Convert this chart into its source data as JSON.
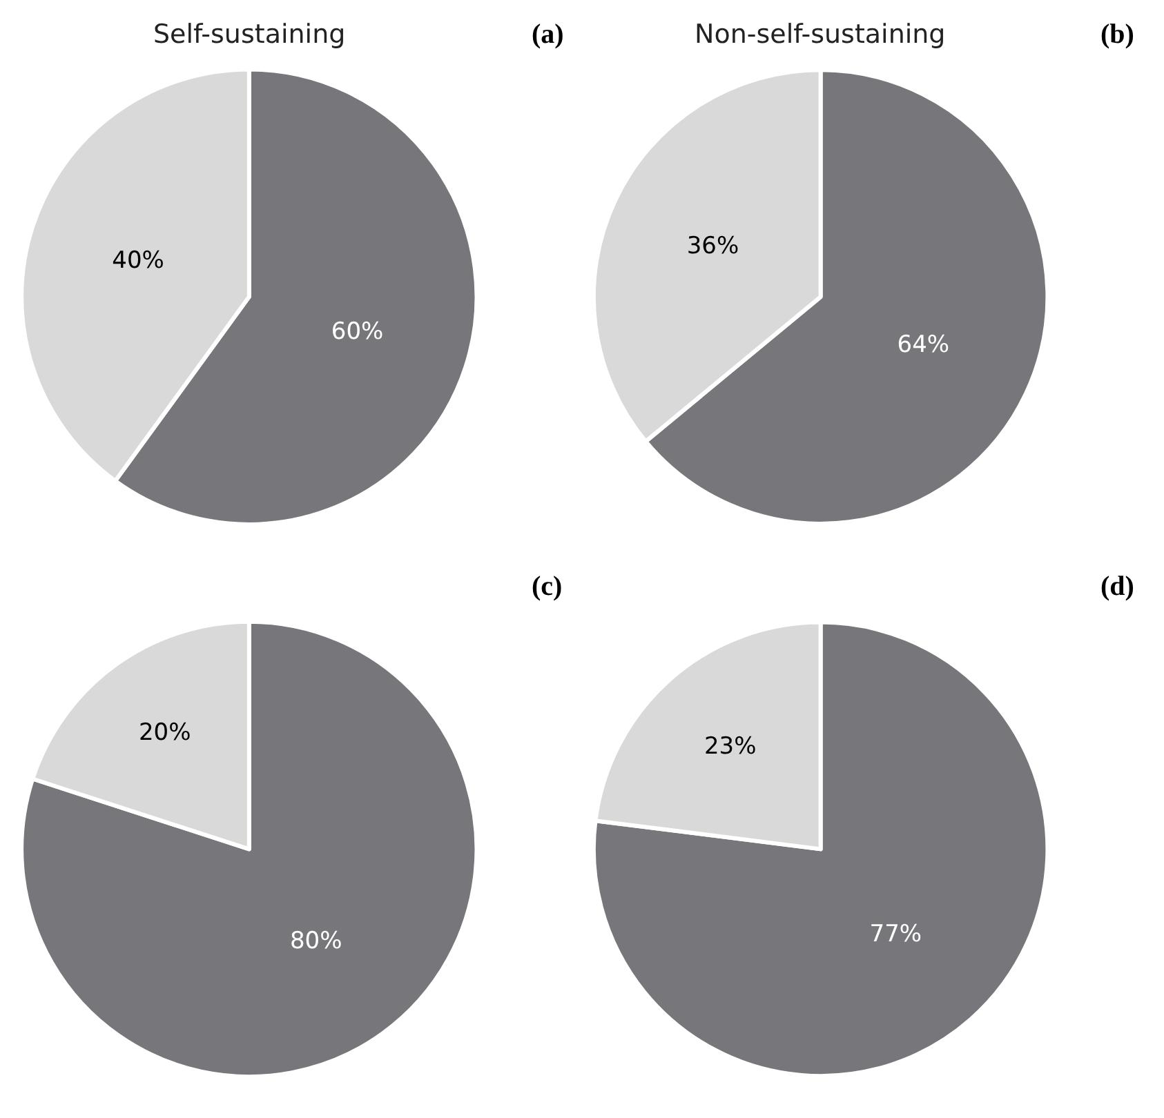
{
  "chart_data": [
    {
      "type": "pie",
      "title": "Self-sustaining",
      "annotations": [
        "(a)"
      ],
      "categories": [
        null,
        null
      ],
      "values": [
        60,
        40
      ],
      "colors": [
        "#77777b",
        "#d9d9d9"
      ],
      "value_labels": [
        "60%",
        "40%"
      ]
    },
    {
      "type": "pie",
      "title": "Non-self-sustaining",
      "annotations": [
        "(b)"
      ],
      "categories": [
        null,
        null
      ],
      "values": [
        64,
        36
      ],
      "colors": [
        "#77777b",
        "#d9d9d9"
      ],
      "value_labels": [
        "64%",
        "36%"
      ]
    },
    {
      "type": "pie",
      "annotations": [
        "(c)"
      ],
      "categories": [
        null,
        null
      ],
      "values": [
        80,
        20
      ],
      "colors": [
        "#77777b",
        "#d9d9d9"
      ],
      "value_labels": [
        "80%",
        "20%"
      ]
    },
    {
      "type": "pie",
      "annotations": [
        "(d)"
      ],
      "categories": [
        null,
        null
      ],
      "values": [
        77,
        23
      ],
      "colors": [
        "#77777b",
        "#d9d9d9"
      ],
      "value_labels": [
        "77%",
        "23%"
      ]
    }
  ]
}
